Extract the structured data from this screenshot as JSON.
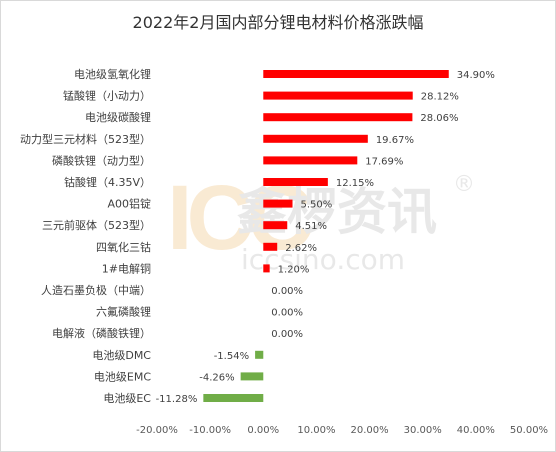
{
  "chart_data": {
    "type": "bar",
    "orientation": "horizontal",
    "title": "2022年2月国内部分锂电材料价格涨跌幅",
    "categories": [
      "电池级氢氧化锂",
      "锰酸锂（小动力）",
      "电池级碳酸锂",
      "动力型三元材料（523型）",
      "磷酸铁锂（动力型）",
      "钴酸锂（4.35V）",
      "A00铝锭",
      "三元前驱体（523型）",
      "四氧化三钴",
      "1#电解铜",
      "人造石墨负极（中端）",
      "六氟磷酸锂",
      "电解液（磷酸铁锂）",
      "电池级DMC",
      "电池级EMC",
      "电池级EC"
    ],
    "values": [
      34.9,
      28.12,
      28.06,
      19.67,
      17.69,
      12.15,
      5.5,
      4.51,
      2.62,
      1.2,
      0.0,
      0.0,
      0.0,
      -1.54,
      -4.26,
      -11.28
    ],
    "data_labels": [
      "34.90%",
      "28.12%",
      "28.06%",
      "19.67%",
      "17.69%",
      "12.15%",
      "5.50%",
      "4.51%",
      "2.62%",
      "1.20%",
      "0.00%",
      "0.00%",
      "0.00%",
      "-1.54%",
      "-4.26%",
      "-11.28%"
    ],
    "xlim": [
      -20,
      50
    ],
    "x_ticks": [
      -20,
      -10,
      0,
      10,
      20,
      30,
      40,
      50
    ],
    "x_tick_labels": [
      "-20.00%",
      "-10.00%",
      "0.00%",
      "10.00%",
      "20.00%",
      "30.00%",
      "40.00%",
      "50.00%"
    ],
    "colors": {
      "positive": "#ff0000",
      "negative": "#70ad47"
    },
    "grid": false,
    "legend": "none"
  },
  "watermark": {
    "logo_text": "ICC",
    "brand_cn": "鑫椤资讯",
    "url": "iccsino.com",
    "registered": "®"
  }
}
